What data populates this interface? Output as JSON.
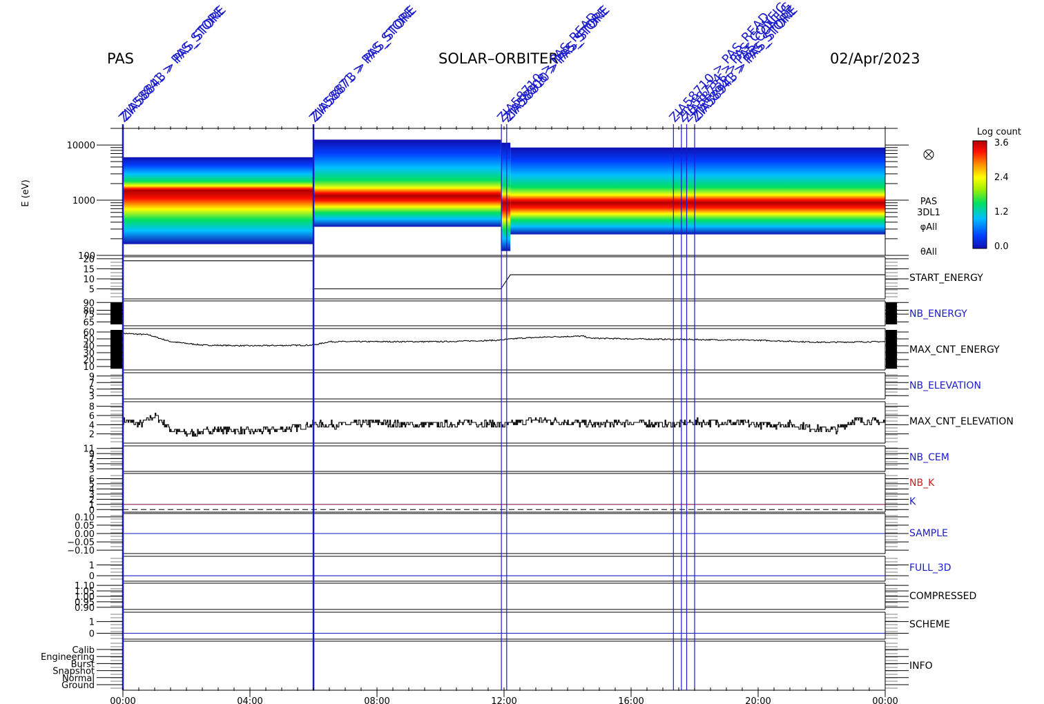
{
  "header": {
    "instrument": "PAS",
    "mission": "SOLAR–ORBITER",
    "date": "02/Apr/2023"
  },
  "colors": {
    "command_line": "#1a1acd",
    "label_black": "#000000",
    "label_blue": "#1a1acd",
    "label_red": "#c81e1e",
    "k_line": "#8b1a4a"
  },
  "command_markers": [
    {
      "time": "00:00",
      "labels": [
        "ZIA58841 > PAS_STORE",
        "ZIA58843 > PAS_STORE"
      ]
    },
    {
      "time": "06:00",
      "labels": [
        "ZIA58871 > PAS_STORE",
        "ZIA58873 > PAS_STORE"
      ]
    },
    {
      "time": "11:55",
      "labels": [
        "ZIA58710 > PAS_READ"
      ]
    },
    {
      "time": "12:05",
      "labels": [
        "ZIA58808 > PAS_STORE",
        "ZIA58810 > PAS_STORE"
      ]
    },
    {
      "time": "17:20",
      "labels": [
        "ZIA58710 > PAS_READ"
      ]
    },
    {
      "time": "17:35",
      "labels": [
        "ZIA58734 > PAS_CONFIG"
      ]
    },
    {
      "time": "17:45",
      "labels": [
        "ZIA58736 > PAS_CONFIG"
      ]
    },
    {
      "time": "18:00",
      "labels": [
        "ZIA58941 > PAS_STORE",
        "ZIA58943 > PAS_STORE"
      ]
    }
  ],
  "chart_data": [
    {
      "type": "heatmap",
      "name": "spectrogram",
      "ylabel": "E (eV)",
      "yscale": "log",
      "ylim": [
        100,
        20000
      ],
      "yticks": [
        "10000",
        "1000",
        "100"
      ],
      "side_labels": [
        "PAS",
        "3DL1",
        "φAll",
        "θAll"
      ],
      "colorbar": {
        "title": "Log count",
        "ticks": [
          "3.6",
          "2.4",
          "1.2",
          "0.0"
        ],
        "range": [
          0.0,
          3.6
        ]
      },
      "segments": [
        {
          "from": 0,
          "to": 6,
          "emin": 160,
          "emax": 6000,
          "peak": 1500
        },
        {
          "from": 6,
          "to": 11.9,
          "emin": 330,
          "emax": 12500,
          "peak": 1200
        },
        {
          "from": 11.9,
          "to": 12.2,
          "emin": 120,
          "emax": 11000,
          "peak": 900
        },
        {
          "from": 12.2,
          "to": 24,
          "emin": 240,
          "emax": 9000,
          "peak": 900
        }
      ]
    },
    {
      "type": "line",
      "name": "START_ENERGY",
      "label": "START_ENERGY",
      "label_color": "black",
      "yticks": [
        "20",
        "15",
        "10",
        "5"
      ],
      "ylim": [
        0,
        21
      ],
      "x": [
        0,
        6,
        6,
        11.9,
        12.2,
        24
      ],
      "y": [
        19,
        19,
        5,
        5,
        12,
        12
      ]
    },
    {
      "type": "line",
      "name": "NB_ENERGY",
      "label": "NB_ENERGY",
      "label_color": "blue",
      "yticks": [
        "90",
        "80",
        "75",
        "65"
      ],
      "ylim": [
        60,
        92
      ],
      "x": [],
      "y": []
    },
    {
      "type": "line",
      "name": "MAX_CNT_ENERGY",
      "label": "MAX_CNT_ENERGY",
      "label_color": "black",
      "yticks": [
        "60",
        "50",
        "40",
        "30",
        "20",
        "10"
      ],
      "ylim": [
        5,
        65
      ],
      "x": [
        0,
        0.8,
        1.5,
        2.5,
        4,
        6,
        6.5,
        8,
        10,
        11.8,
        12.5,
        13.5,
        14.5,
        14.7,
        16,
        18,
        20,
        22,
        24
      ],
      "y": [
        58,
        56,
        46,
        41,
        40,
        41,
        46,
        46,
        46,
        48,
        51,
        53,
        54,
        51,
        50,
        49,
        48,
        45,
        46
      ]
    },
    {
      "type": "line",
      "name": "NB_ELEVATION",
      "label": "NB_ELEVATION",
      "label_color": "blue",
      "yticks": [
        "9",
        "7",
        "5",
        "3"
      ],
      "ylim": [
        2,
        10
      ],
      "x": [],
      "y": []
    },
    {
      "type": "line",
      "name": "MAX_CNT_ELEVATION",
      "label": "MAX_CNT_ELEVATION",
      "label_color": "black",
      "yticks": [
        "8",
        "6",
        "4",
        "2"
      ],
      "ylim": [
        0,
        9
      ],
      "x": [
        0,
        0.5,
        1,
        1.5,
        2,
        3,
        4,
        5,
        6,
        7,
        8,
        9,
        10,
        11,
        12,
        13,
        14,
        15,
        16,
        17,
        18,
        19,
        20,
        21,
        22,
        22.5,
        23,
        24
      ],
      "y": [
        5,
        4,
        6,
        3,
        2,
        3,
        2.5,
        3,
        4,
        4,
        4.5,
        4,
        4,
        4.5,
        4,
        5,
        4.5,
        4,
        4.5,
        4,
        4.5,
        4.5,
        4,
        4,
        3,
        3,
        5,
        4.5
      ]
    },
    {
      "type": "line",
      "name": "NB_CEM",
      "label": "NB_CEM",
      "label_color": "blue",
      "yticks": [
        "11",
        "9",
        "7",
        "5",
        "3"
      ],
      "ylim": [
        2,
        12
      ],
      "x": [],
      "y": []
    },
    {
      "type": "line",
      "name": "NB_K",
      "label": "NB_K",
      "label_color": "red",
      "yticks": [
        "6",
        "5",
        "4",
        "3",
        "2",
        "1",
        "0"
      ],
      "ylim": [
        -0.5,
        7
      ],
      "x": [
        0,
        24
      ],
      "y": [
        1,
        1
      ]
    },
    {
      "type": "line",
      "name": "SAMPLE",
      "label": "SAMPLE",
      "label_color": "blue",
      "yticks": [
        "0.10",
        "0.05",
        "0.00",
        "−0.05",
        "−0.10"
      ],
      "ylim": [
        -0.12,
        0.12
      ],
      "x": [
        0,
        24
      ],
      "y": [
        0,
        0
      ]
    },
    {
      "type": "line",
      "name": "FULL_3D",
      "label": "FULL_3D",
      "label_color": "blue",
      "yticks": [
        "1",
        "0"
      ],
      "ylim": [
        -0.5,
        1.8
      ],
      "x": [
        0,
        24
      ],
      "y": [
        0,
        0
      ]
    },
    {
      "type": "line",
      "name": "COMPRESSED",
      "label": "COMPRESSED",
      "label_color": "black",
      "yticks": [
        "1.10",
        "1.05",
        "1.00",
        "0.95",
        "0.90"
      ],
      "ylim": [
        0.88,
        1.12
      ],
      "x": [],
      "y": []
    },
    {
      "type": "line",
      "name": "SCHEME",
      "label": "SCHEME",
      "label_color": "black",
      "yticks": [
        "1",
        "0"
      ],
      "ylim": [
        -0.5,
        1.8
      ],
      "x": [
        0,
        24
      ],
      "y": [
        0,
        0
      ]
    },
    {
      "type": "line",
      "name": "INFO",
      "label": "INFO",
      "label_color": "black",
      "yticks": [
        "Calib",
        "Engineering",
        "Burst",
        "Snapshot",
        "Normal",
        "Ground"
      ],
      "ylim": [
        0,
        6
      ],
      "x": [],
      "y": []
    }
  ],
  "k_label": "K",
  "x_axis": {
    "ticks": [
      "00:00",
      "04:00",
      "08:00",
      "12:00",
      "16:00",
      "20:00",
      "00:00"
    ],
    "range_hours": [
      0,
      24
    ]
  }
}
